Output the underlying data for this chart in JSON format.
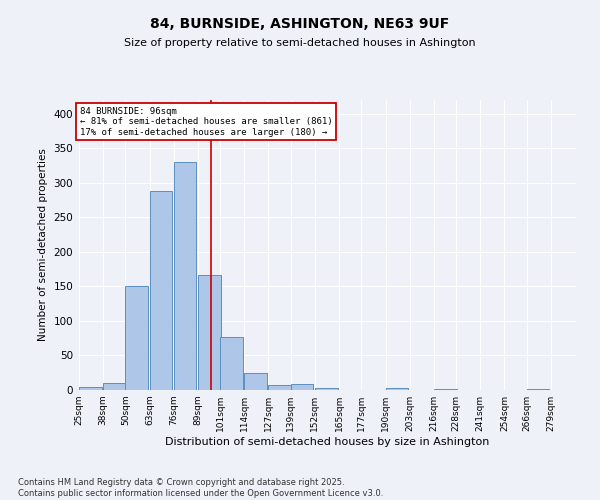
{
  "title1": "84, BURNSIDE, ASHINGTON, NE63 9UF",
  "title2": "Size of property relative to semi-detached houses in Ashington",
  "xlabel": "Distribution of semi-detached houses by size in Ashington",
  "ylabel": "Number of semi-detached properties",
  "footnote": "Contains HM Land Registry data © Crown copyright and database right 2025.\nContains public sector information licensed under the Open Government Licence v3.0.",
  "bin_labels": [
    "25sqm",
    "38sqm",
    "50sqm",
    "63sqm",
    "76sqm",
    "89sqm",
    "101sqm",
    "114sqm",
    "127sqm",
    "139sqm",
    "152sqm",
    "165sqm",
    "177sqm",
    "190sqm",
    "203sqm",
    "216sqm",
    "228sqm",
    "241sqm",
    "254sqm",
    "266sqm",
    "279sqm"
  ],
  "bar_heights": [
    5,
    10,
    150,
    288,
    330,
    167,
    77,
    25,
    7,
    9,
    3,
    0,
    0,
    3,
    0,
    2,
    0,
    0,
    0,
    2,
    0
  ],
  "bar_color": "#aec6e8",
  "bar_edge_color": "#5b8fbe",
  "property_line_x": 96,
  "property_line_label": "84 BURNSIDE: 96sqm",
  "annotation_smaller": "← 81% of semi-detached houses are smaller (861)",
  "annotation_larger": "17% of semi-detached houses are larger (180) →",
  "annotation_box_color": "#ffffff",
  "annotation_box_edge": "#cc0000",
  "ylim": [
    0,
    420
  ],
  "yticks": [
    0,
    50,
    100,
    150,
    200,
    250,
    300,
    350,
    400
  ],
  "bg_color": "#eef2f8",
  "plot_bg_color": "#eef2f8",
  "grid_color": "#ffffff",
  "vline_color": "#cc0000",
  "bin_width": 13
}
